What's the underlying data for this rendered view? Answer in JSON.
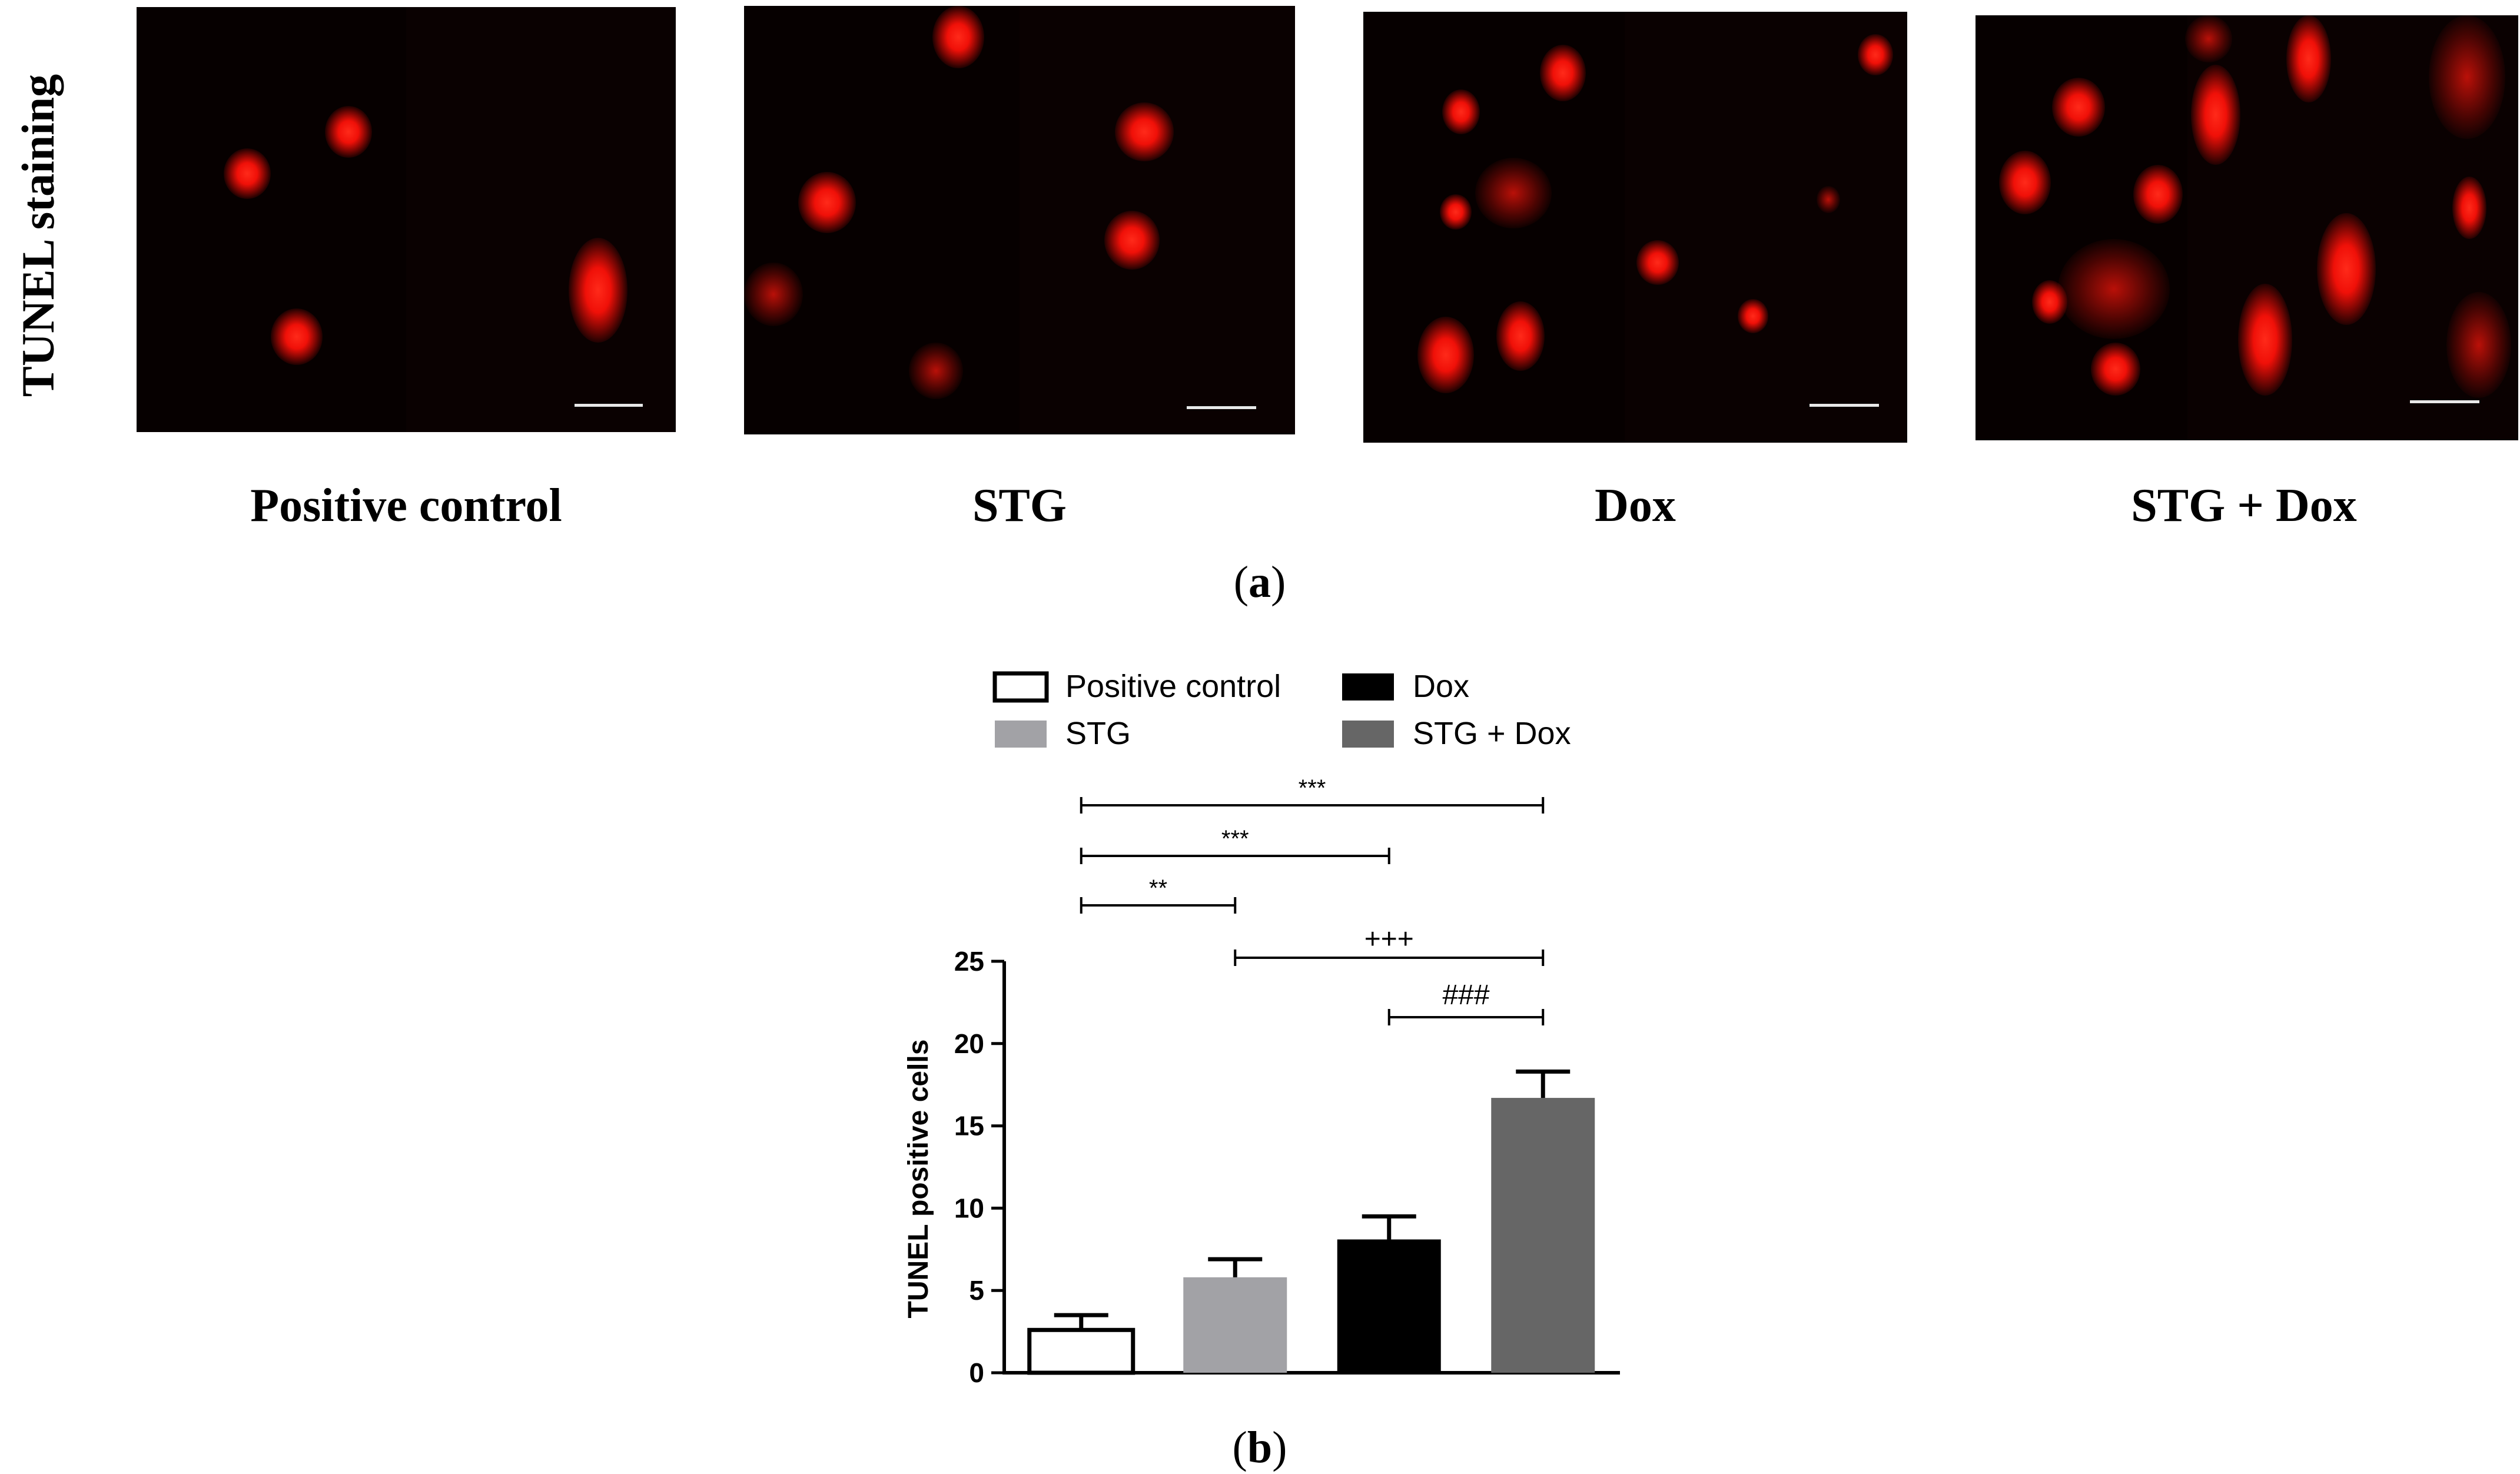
{
  "figure": {
    "row_label": "TUNEL staining",
    "panels": [
      {
        "caption": "Positive control"
      },
      {
        "caption": "STG"
      },
      {
        "caption": "Dox"
      },
      {
        "caption": "STG + Dox"
      }
    ],
    "panel_a_letter": "a",
    "panel_b_letter": "b",
    "paren_open": "(",
    "paren_close": ")"
  },
  "chart_data": {
    "type": "bar",
    "categories": [
      "Positive control",
      "STG",
      "Dox",
      "STG + Dox"
    ],
    "values": [
      2.6,
      5.8,
      8.1,
      16.7
    ],
    "errors": [
      0.9,
      1.1,
      1.4,
      1.6
    ],
    "colors": [
      "#ffffff",
      "#a2a2a6",
      "#000000",
      "#666666"
    ],
    "ylabel": "TUNEL positive cells",
    "xlabel": "",
    "ylim": [
      0,
      25
    ],
    "yticks": [
      0,
      5,
      10,
      15,
      20,
      25
    ],
    "grid": false,
    "legend": {
      "placement": "top",
      "entries": [
        "Positive control",
        "Dox",
        "STG",
        "STG + Dox"
      ]
    },
    "significance": [
      {
        "from": 0,
        "to": 3,
        "label": "***"
      },
      {
        "from": 0,
        "to": 2,
        "label": "***"
      },
      {
        "from": 0,
        "to": 1,
        "label": "**"
      },
      {
        "from": 1,
        "to": 3,
        "label": "+++"
      },
      {
        "from": 2,
        "to": 3,
        "label": "###"
      }
    ]
  }
}
